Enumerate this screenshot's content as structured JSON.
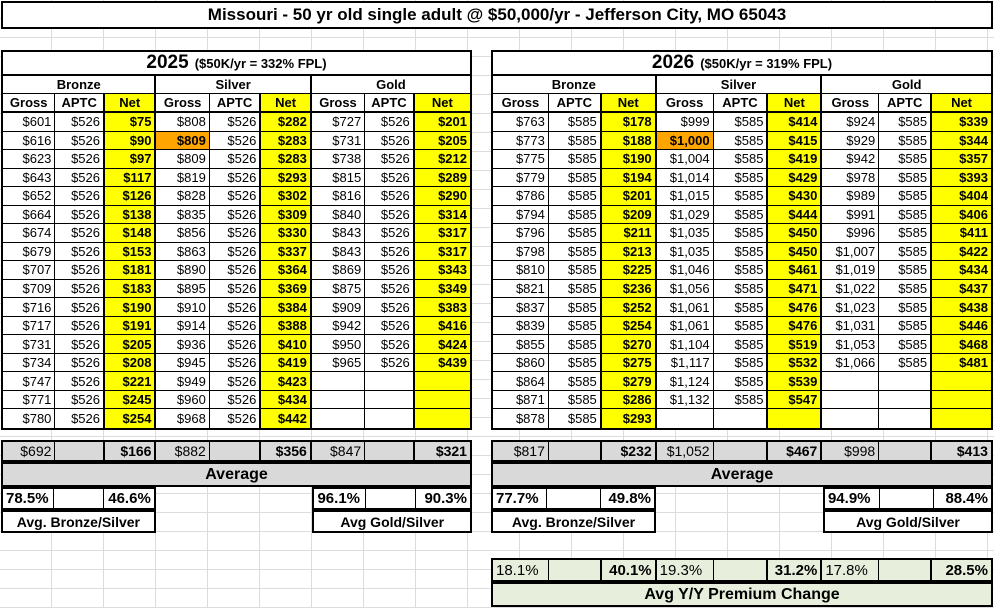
{
  "title": "Missouri - 50 yr old single adult @ $50,000/yr - Jefferson City, MO 65043",
  "colors": {
    "net_highlight": "#FFFF00",
    "benchmark_highlight": "#FFA500",
    "summary_gray": "#D9D9D9",
    "change_green": "#E7EFDC"
  },
  "tables": [
    {
      "year": "2025",
      "fpl": "($50K/yr = 332% FPL)",
      "tiers": [
        "Bronze",
        "Silver",
        "Gold"
      ],
      "columns": [
        "Gross",
        "APTC",
        "Net"
      ],
      "highlight": {
        "row": 1,
        "col": 3
      },
      "rows": [
        [
          "$601",
          "$526",
          "$75",
          "$808",
          "$526",
          "$282",
          "$727",
          "$526",
          "$201"
        ],
        [
          "$616",
          "$526",
          "$90",
          "$809",
          "$526",
          "$283",
          "$731",
          "$526",
          "$205"
        ],
        [
          "$623",
          "$526",
          "$97",
          "$809",
          "$526",
          "$283",
          "$738",
          "$526",
          "$212"
        ],
        [
          "$643",
          "$526",
          "$117",
          "$819",
          "$526",
          "$293",
          "$815",
          "$526",
          "$289"
        ],
        [
          "$652",
          "$526",
          "$126",
          "$828",
          "$526",
          "$302",
          "$816",
          "$526",
          "$290"
        ],
        [
          "$664",
          "$526",
          "$138",
          "$835",
          "$526",
          "$309",
          "$840",
          "$526",
          "$314"
        ],
        [
          "$674",
          "$526",
          "$148",
          "$856",
          "$526",
          "$330",
          "$843",
          "$526",
          "$317"
        ],
        [
          "$679",
          "$526",
          "$153",
          "$863",
          "$526",
          "$337",
          "$843",
          "$526",
          "$317"
        ],
        [
          "$707",
          "$526",
          "$181",
          "$890",
          "$526",
          "$364",
          "$869",
          "$526",
          "$343"
        ],
        [
          "$709",
          "$526",
          "$183",
          "$895",
          "$526",
          "$369",
          "$875",
          "$526",
          "$349"
        ],
        [
          "$716",
          "$526",
          "$190",
          "$910",
          "$526",
          "$384",
          "$909",
          "$526",
          "$383"
        ],
        [
          "$717",
          "$526",
          "$191",
          "$914",
          "$526",
          "$388",
          "$942",
          "$526",
          "$416"
        ],
        [
          "$731",
          "$526",
          "$205",
          "$936",
          "$526",
          "$410",
          "$950",
          "$526",
          "$424"
        ],
        [
          "$734",
          "$526",
          "$208",
          "$945",
          "$526",
          "$419",
          "$965",
          "$526",
          "$439"
        ],
        [
          "$747",
          "$526",
          "$221",
          "$949",
          "$526",
          "$423",
          "",
          "",
          ""
        ],
        [
          "$771",
          "$526",
          "$245",
          "$960",
          "$526",
          "$434",
          "",
          "",
          ""
        ],
        [
          "$780",
          "$526",
          "$254",
          "$968",
          "$526",
          "$442",
          "",
          "",
          ""
        ]
      ],
      "summary": {
        "avg_values": [
          "$692",
          "",
          "$166",
          "$882",
          "",
          "$356",
          "$847",
          "",
          "$321"
        ],
        "average_label": "Average",
        "pct_values": [
          "78.5%",
          "",
          "46.6%",
          "",
          "",
          "",
          "96.1%",
          "",
          "90.3%"
        ],
        "bronze_silver_label": "Avg. Bronze/Silver",
        "gold_silver_label": "Avg Gold/Silver"
      }
    },
    {
      "year": "2026",
      "fpl": "($50K/yr = 319% FPL)",
      "tiers": [
        "Bronze",
        "Silver",
        "Gold"
      ],
      "columns": [
        "Gross",
        "APTC",
        "Net"
      ],
      "highlight": {
        "row": 1,
        "col": 3
      },
      "rows": [
        [
          "$763",
          "$585",
          "$178",
          "$999",
          "$585",
          "$414",
          "$924",
          "$585",
          "$339"
        ],
        [
          "$773",
          "$585",
          "$188",
          "$1,000",
          "$585",
          "$415",
          "$929",
          "$585",
          "$344"
        ],
        [
          "$775",
          "$585",
          "$190",
          "$1,004",
          "$585",
          "$419",
          "$942",
          "$585",
          "$357"
        ],
        [
          "$779",
          "$585",
          "$194",
          "$1,014",
          "$585",
          "$429",
          "$978",
          "$585",
          "$393"
        ],
        [
          "$786",
          "$585",
          "$201",
          "$1,015",
          "$585",
          "$430",
          "$989",
          "$585",
          "$404"
        ],
        [
          "$794",
          "$585",
          "$209",
          "$1,029",
          "$585",
          "$444",
          "$991",
          "$585",
          "$406"
        ],
        [
          "$796",
          "$585",
          "$211",
          "$1,035",
          "$585",
          "$450",
          "$996",
          "$585",
          "$411"
        ],
        [
          "$798",
          "$585",
          "$213",
          "$1,035",
          "$585",
          "$450",
          "$1,007",
          "$585",
          "$422"
        ],
        [
          "$810",
          "$585",
          "$225",
          "$1,046",
          "$585",
          "$461",
          "$1,019",
          "$585",
          "$434"
        ],
        [
          "$821",
          "$585",
          "$236",
          "$1,056",
          "$585",
          "$471",
          "$1,022",
          "$585",
          "$437"
        ],
        [
          "$837",
          "$585",
          "$252",
          "$1,061",
          "$585",
          "$476",
          "$1,023",
          "$585",
          "$438"
        ],
        [
          "$839",
          "$585",
          "$254",
          "$1,061",
          "$585",
          "$476",
          "$1,031",
          "$585",
          "$446"
        ],
        [
          "$855",
          "$585",
          "$270",
          "$1,104",
          "$585",
          "$519",
          "$1,053",
          "$585",
          "$468"
        ],
        [
          "$860",
          "$585",
          "$275",
          "$1,117",
          "$585",
          "$532",
          "$1,066",
          "$585",
          "$481"
        ],
        [
          "$864",
          "$585",
          "$279",
          "$1,124",
          "$585",
          "$539",
          "",
          "",
          ""
        ],
        [
          "$871",
          "$585",
          "$286",
          "$1,132",
          "$585",
          "$547",
          "",
          "",
          ""
        ],
        [
          "$878",
          "$585",
          "$293",
          "",
          "",
          "",
          "",
          "",
          ""
        ]
      ],
      "summary": {
        "avg_values": [
          "$817",
          "",
          "$232",
          "$1,052",
          "",
          "$467",
          "$998",
          "",
          "$413"
        ],
        "average_label": "Average",
        "pct_values": [
          "77.7%",
          "",
          "49.8%",
          "",
          "",
          "",
          "94.9%",
          "",
          "88.4%"
        ],
        "bronze_silver_label": "Avg. Bronze/Silver",
        "gold_silver_label": "Avg Gold/Silver"
      },
      "yy_change": {
        "values": [
          "18.1%",
          "",
          "40.1%",
          "19.3%",
          "",
          "31.2%",
          "17.8%",
          "",
          "28.5%"
        ],
        "label": "Avg Y/Y Premium Change"
      }
    }
  ]
}
